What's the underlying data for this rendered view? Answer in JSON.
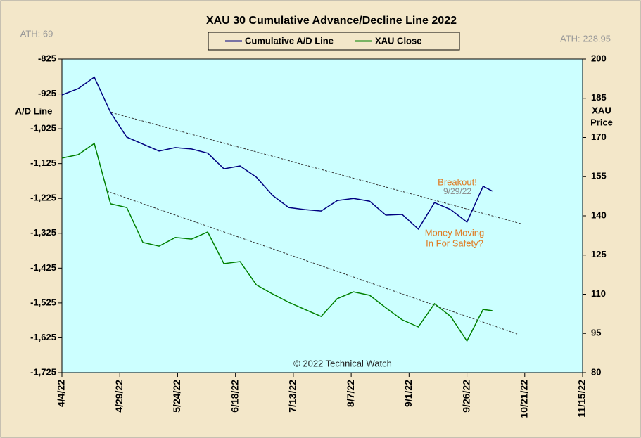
{
  "chart_data": {
    "type": "line",
    "title": "XAU 30 Cumulative  Advance/Decline  Line  2022",
    "ylabel": "A/D Line",
    "y2label": [
      "XAU",
      "Price"
    ],
    "annotations": [
      "Breakout!",
      "9/29/22",
      "Money Moving",
      "In For Safety?",
      "© 2022 Technical Watch",
      "ATH: 69",
      "ATH: 228.95"
    ],
    "legend": "top",
    "x": [
      "2022-04-04",
      "2022-04-11",
      "2022-04-18",
      "2022-04-25",
      "2022-05-02",
      "2022-05-09",
      "2022-05-16",
      "2022-05-23",
      "2022-05-30",
      "2022-06-06",
      "2022-06-13",
      "2022-06-20",
      "2022-06-27",
      "2022-07-04",
      "2022-07-11",
      "2022-07-18",
      "2022-07-25",
      "2022-08-01",
      "2022-08-08",
      "2022-08-15",
      "2022-08-22",
      "2022-08-29",
      "2022-09-05",
      "2022-09-12",
      "2022-09-19",
      "2022-09-26",
      "2022-10-03",
      "2022-10-07"
    ],
    "series": [
      {
        "name": "Cumulative A/D Line",
        "color": "#000080",
        "values": [
          -928,
          -910,
          -877,
          -978,
          -1049,
          -1069,
          -1089,
          -1079,
          -1083,
          -1095,
          -1140,
          -1132,
          -1164,
          -1216,
          -1251,
          -1257,
          -1261,
          -1231,
          -1225,
          -1233,
          -1273,
          -1271,
          -1313,
          -1237,
          -1257,
          -1293,
          -1190,
          -1204
        ]
      },
      {
        "name": "XAU Close",
        "color": "#008000",
        "axis": "y2",
        "values": [
          162.1,
          163.4,
          167.7,
          144.6,
          143.2,
          129.8,
          128.4,
          131.7,
          131.1,
          133.8,
          121.7,
          122.5,
          113.6,
          110.1,
          106.9,
          104.2,
          101.5,
          108.3,
          110.9,
          109.6,
          104.8,
          100.2,
          97.5,
          106.4,
          101.5,
          92.1,
          104.2,
          103.7
        ]
      }
    ],
    "xlim": [
      "2022-04-04",
      "2022-11-15"
    ],
    "xticks": [
      {
        "value": "2022-04-04",
        "label": "4/4/22"
      },
      {
        "value": "2022-04-29",
        "label": "4/29/22"
      },
      {
        "value": "2022-05-24",
        "label": "5/24/22"
      },
      {
        "value": "2022-06-18",
        "label": "6/18/22"
      },
      {
        "value": "2022-07-13",
        "label": "7/13/22"
      },
      {
        "value": "2022-08-07",
        "label": "8/7/22"
      },
      {
        "value": "2022-09-01",
        "label": "9/1/22"
      },
      {
        "value": "2022-09-26",
        "label": "9/26/22"
      },
      {
        "value": "2022-10-21",
        "label": "10/21/22"
      },
      {
        "value": "2022-11-15",
        "label": "11/15/22"
      }
    ],
    "ylim": [
      -1725,
      -825
    ],
    "yticks": [
      -825,
      -925,
      {
        "value": -1025,
        "label": "-1,025"
      },
      {
        "value": -1125,
        "label": "-1,125"
      },
      {
        "value": -1225,
        "label": "-1,225"
      },
      {
        "value": -1325,
        "label": "-1,325"
      },
      {
        "value": -1425,
        "label": "-1,425"
      },
      {
        "value": -1525,
        "label": "-1,525"
      },
      {
        "value": -1625,
        "label": "-1,625"
      },
      {
        "value": -1725,
        "label": "-1,725"
      }
    ],
    "y2lim": [
      80,
      200
    ],
    "y2ticks": [
      80,
      95,
      110,
      125,
      140,
      155,
      170,
      185,
      200
    ],
    "grid": false
  }
}
